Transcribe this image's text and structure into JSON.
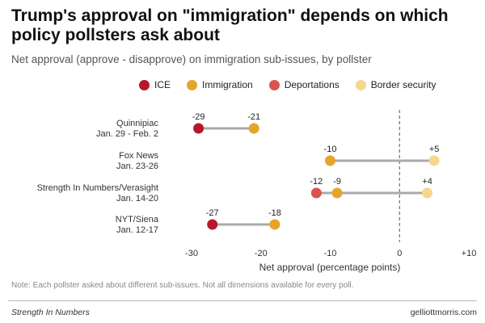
{
  "header": {
    "title": "Trump's approval on \"immigration\" depends on which policy pollsters ask about",
    "subtitle": "Net approval (approve - disapprove) on immigration sub-issues, by pollster"
  },
  "legend": [
    {
      "name": "ICE",
      "color": "#b5182a"
    },
    {
      "name": "Immigration",
      "color": "#e6a42b"
    },
    {
      "name": "Deportations",
      "color": "#d9534f"
    },
    {
      "name": "Border security",
      "color": "#f5d88e"
    }
  ],
  "chart_data": {
    "type": "scatter",
    "title": "",
    "xlabel": "Net approval (percentage points)",
    "ylabel": "",
    "xlim": [
      -33,
      10
    ],
    "x_ticks": [
      -30,
      -20,
      -10,
      0,
      10
    ],
    "x_tick_labels": [
      "-30",
      "-20",
      "-10",
      "0",
      "+10"
    ],
    "reference_line": {
      "x": 0,
      "style": "dashed"
    },
    "grid": false,
    "legend_position": "top",
    "series_colors": {
      "ICE": "#b5182a",
      "Immigration": "#e6a42b",
      "Deportations": "#d9534f",
      "Border security": "#f5d88e"
    },
    "polls": [
      {
        "pollster": "Quinnipiac",
        "dates": "Jan. 29 - Feb. 2",
        "points": [
          {
            "issue": "ICE",
            "value": -29,
            "label": "-29"
          },
          {
            "issue": "Immigration",
            "value": -21,
            "label": "-21"
          }
        ]
      },
      {
        "pollster": "Fox News",
        "dates": "Jan. 23-26",
        "points": [
          {
            "issue": "Immigration",
            "value": -10,
            "label": "-10"
          },
          {
            "issue": "Border security",
            "value": 5,
            "label": "+5"
          }
        ]
      },
      {
        "pollster": "Strength In Numbers/Verasight",
        "dates": "Jan. 14-20",
        "points": [
          {
            "issue": "Deportations",
            "value": -12,
            "label": "-12"
          },
          {
            "issue": "Immigration",
            "value": -9,
            "label": "-9"
          },
          {
            "issue": "Border security",
            "value": 4,
            "label": "+4"
          }
        ]
      },
      {
        "pollster": "NYT/Siena",
        "dates": "Jan. 12-17",
        "points": [
          {
            "issue": "ICE",
            "value": -27,
            "label": "-27"
          },
          {
            "issue": "Immigration",
            "value": -18,
            "label": "-18"
          }
        ]
      }
    ]
  },
  "note": "Note: Each pollster asked about different sub-issues. Not all dimensions available for every poll.",
  "footer": {
    "left": "Strength In Numbers",
    "right": "gelliottmorris.com"
  }
}
